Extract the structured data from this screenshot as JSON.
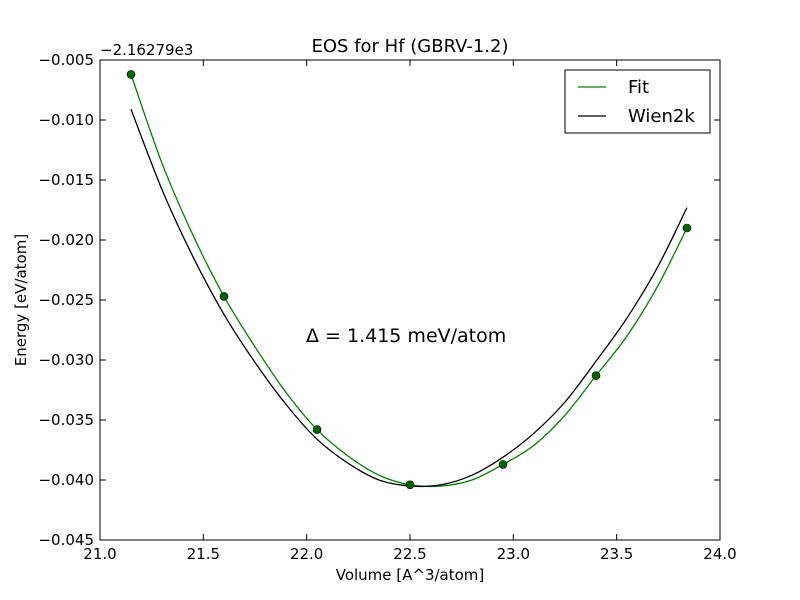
{
  "chart_data": {
    "type": "line",
    "title": "EOS for Hf (GBRV-1.2)",
    "xlabel": "Volume [A^3/atom]",
    "ylabel": "Energy [eV/atom]",
    "y_offset_label": "−2.16279e3",
    "xlim": [
      21.0,
      24.0
    ],
    "ylim": [
      -0.045,
      -0.005
    ],
    "x_ticks": [
      21.0,
      21.5,
      22.0,
      22.5,
      23.0,
      23.5,
      24.0
    ],
    "x_tick_labels": [
      "21.0",
      "21.5",
      "22.0",
      "22.5",
      "23.0",
      "23.5",
      "24.0"
    ],
    "y_ticks": [
      -0.045,
      -0.04,
      -0.035,
      -0.03,
      -0.025,
      -0.02,
      -0.015,
      -0.01,
      -0.005
    ],
    "y_tick_labels": [
      "−0.045",
      "−0.040",
      "−0.035",
      "−0.030",
      "−0.025",
      "−0.020",
      "−0.015",
      "−0.010",
      "−0.005"
    ],
    "grid": false,
    "legend_position": "top-right",
    "annotation": "Δ = 1.415 meV/atom",
    "series": [
      {
        "name": "Fit",
        "color": "#008000",
        "style": "line",
        "x": [
          21.15,
          21.3,
          21.45,
          21.6,
          21.75,
          21.9,
          22.05,
          22.2,
          22.35,
          22.5,
          22.65,
          22.8,
          22.95,
          23.1,
          23.25,
          23.4,
          23.55,
          23.7,
          23.84
        ],
        "y": [
          -0.0062,
          -0.0136,
          -0.0196,
          -0.0247,
          -0.0289,
          -0.0327,
          -0.0358,
          -0.038,
          -0.0396,
          -0.0404,
          -0.0405,
          -0.04,
          -0.0387,
          -0.0371,
          -0.0346,
          -0.0313,
          -0.028,
          -0.0238,
          -0.019
        ]
      },
      {
        "name": "Wien2k",
        "color": "#000000",
        "style": "line",
        "x": [
          21.15,
          21.3,
          21.45,
          21.6,
          21.75,
          21.9,
          22.05,
          22.2,
          22.35,
          22.5,
          22.65,
          22.8,
          22.95,
          23.1,
          23.25,
          23.4,
          23.55,
          23.7,
          23.84
        ],
        "y": [
          -0.0091,
          -0.0158,
          -0.0214,
          -0.0262,
          -0.0302,
          -0.0337,
          -0.0366,
          -0.0386,
          -0.04,
          -0.0405,
          -0.0404,
          -0.0396,
          -0.0381,
          -0.0361,
          -0.0335,
          -0.0301,
          -0.0265,
          -0.0222,
          -0.0173
        ]
      },
      {
        "name": "",
        "color": "#006400",
        "style": "points",
        "x": [
          21.15,
          21.6,
          22.05,
          22.5,
          22.95,
          23.4,
          23.84
        ],
        "y": [
          -0.0062,
          -0.0247,
          -0.0358,
          -0.0404,
          -0.0387,
          -0.0313,
          -0.019
        ]
      }
    ]
  }
}
